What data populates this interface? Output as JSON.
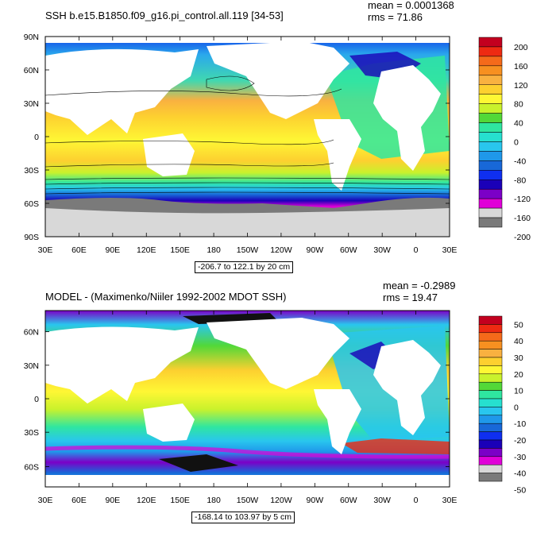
{
  "chart_data": [
    {
      "type": "heatmap",
      "title": "SSH b.e15.B1850.f09_g16.pi_control.all.119 [34-53]",
      "stats": {
        "mean": "mean = 0.0001368",
        "rms": "rms = 71.86"
      },
      "x_ticks": [
        "30E",
        "60E",
        "90E",
        "120E",
        "150E",
        "180",
        "150W",
        "120W",
        "90W",
        "60W",
        "30W",
        "0",
        "30E"
      ],
      "y_ticks": [
        "90N",
        "60N",
        "30N",
        "0",
        "30S",
        "60S",
        "90S"
      ],
      "range_note": "-206.7 to 122.1 by 20 cm",
      "colorbar": {
        "labels": [
          "200",
          "160",
          "120",
          "80",
          "40",
          "0",
          "-40",
          "-80",
          "-120",
          "-160",
          "-200"
        ],
        "colors": [
          "#c3001f",
          "#ee2a12",
          "#f56a1a",
          "#f79020",
          "#f9b140",
          "#fdd02f",
          "#fef734",
          "#c9f22c",
          "#52d838",
          "#2fe6a0",
          "#26e0cf",
          "#29c6ee",
          "#1f98ea",
          "#1868d8",
          "#0f2ff0",
          "#1a00b8",
          "#7b00c7",
          "#e000d8",
          "#d8d8d8",
          "#7a7a7a"
        ]
      }
    },
    {
      "type": "heatmap",
      "title": "MODEL - (Maximenko/Niiler 1992-2002 MDOT SSH)",
      "stats": {
        "mean": "mean = -0.2989",
        "rms": "rms = 19.47"
      },
      "x_ticks": [
        "30E",
        "60E",
        "90E",
        "120E",
        "150E",
        "180",
        "150W",
        "120W",
        "90W",
        "60W",
        "30W",
        "0",
        "30E"
      ],
      "y_ticks": [
        "60N",
        "30N",
        "0",
        "30S",
        "60S"
      ],
      "range_note": "-168.14 to 103.97 by 5 cm",
      "colorbar": {
        "labels": [
          "50",
          "40",
          "30",
          "20",
          "10",
          "0",
          "-10",
          "-20",
          "-30",
          "-40",
          "-50"
        ],
        "colors": [
          "#c3001f",
          "#ee2a12",
          "#f56a1a",
          "#f79020",
          "#f9b140",
          "#fdd02f",
          "#fef734",
          "#c9f22c",
          "#52d838",
          "#2fe6a0",
          "#26e0cf",
          "#29c6ee",
          "#1f98ea",
          "#1868d8",
          "#0f2ff0",
          "#1a00b8",
          "#7b00c7",
          "#e000d8",
          "#d8d8d8",
          "#7a7a7a"
        ]
      }
    }
  ]
}
